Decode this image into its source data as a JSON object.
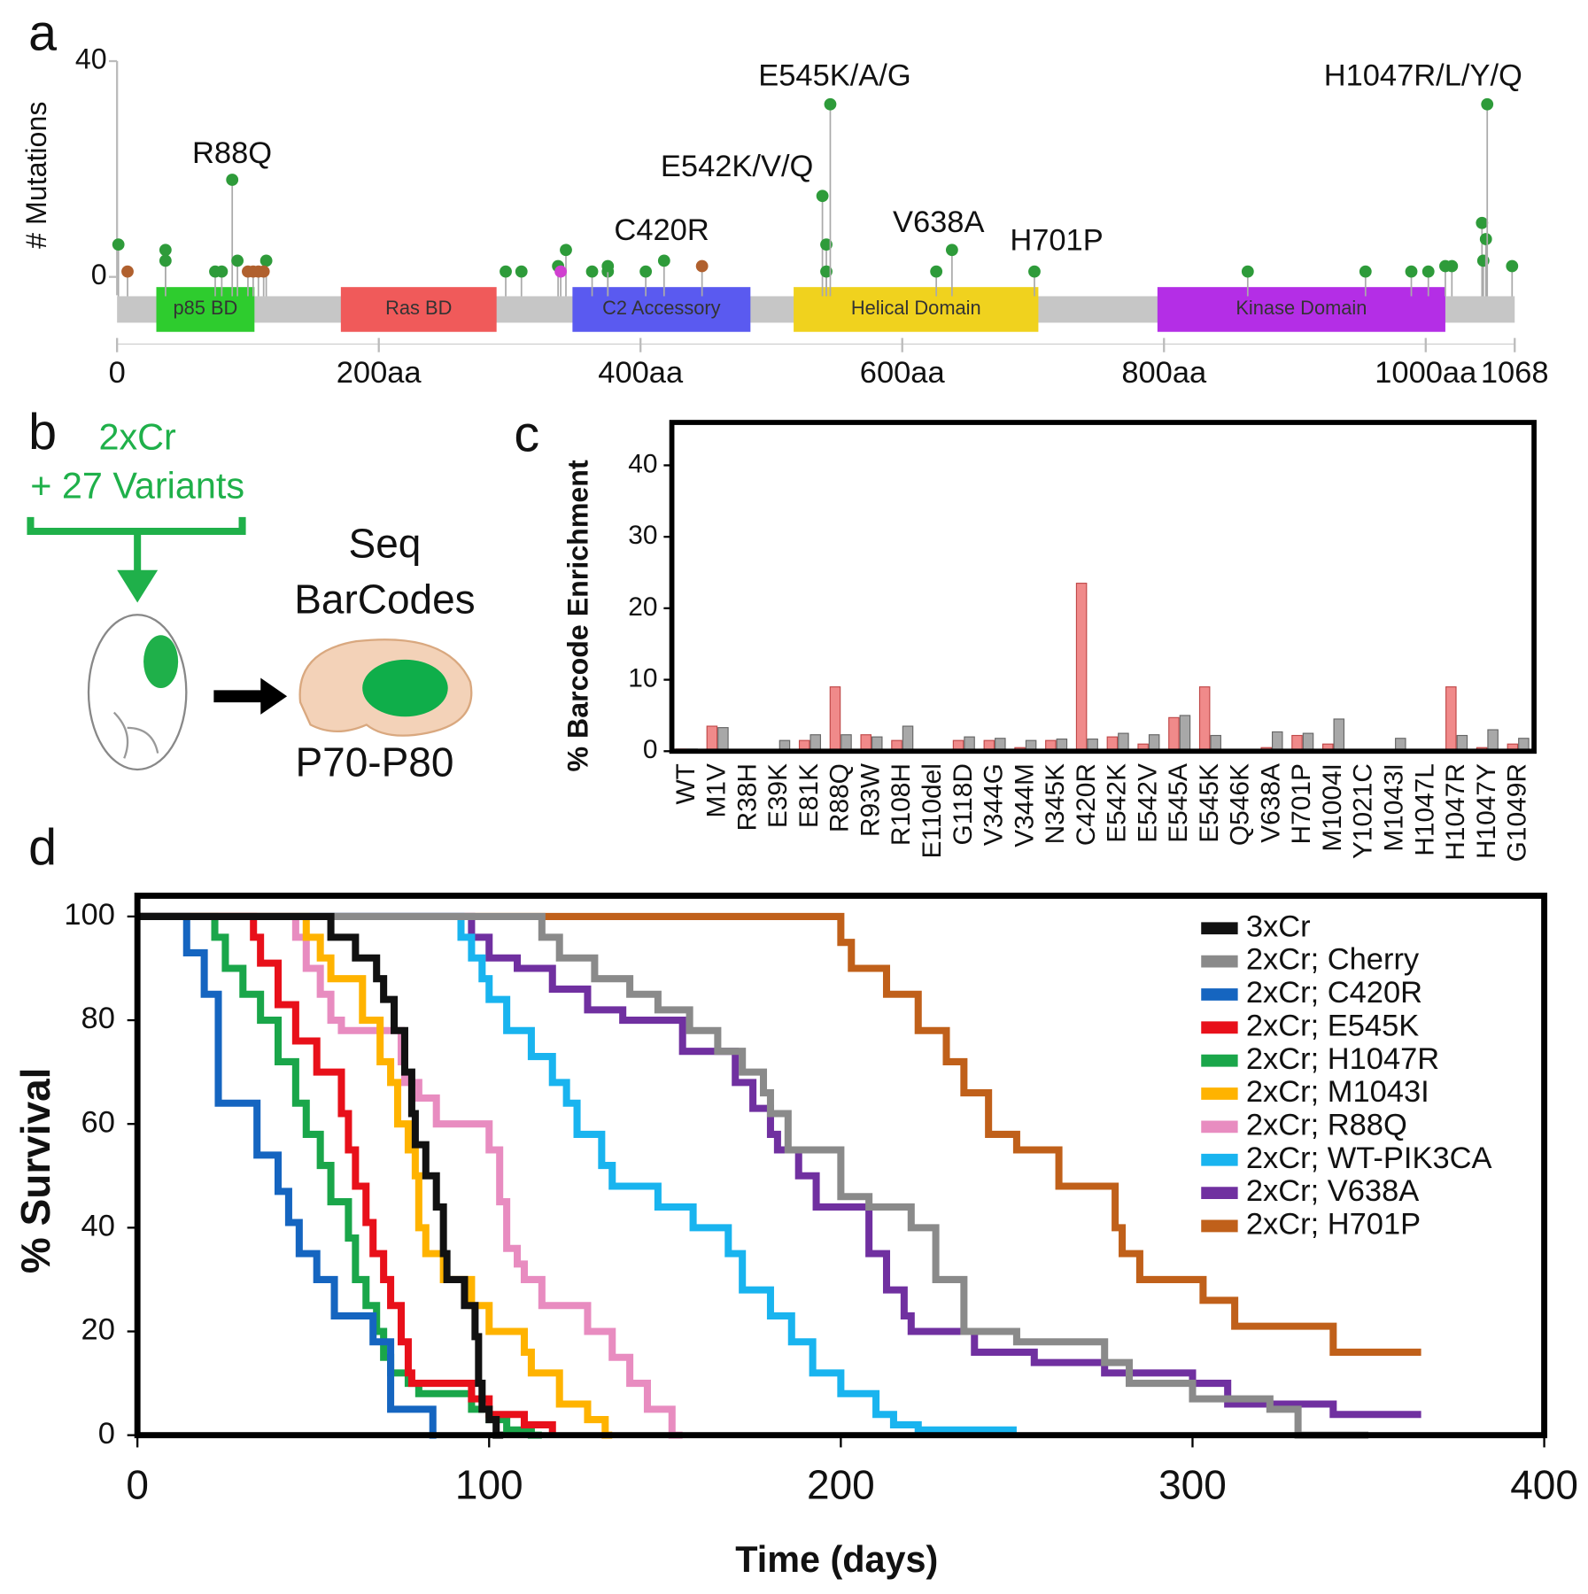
{
  "panel_labels": [
    "a",
    "b",
    "c",
    "d"
  ],
  "diagram": {
    "texts": [
      "2xCr",
      "+ 27 Variants",
      "Seq",
      "BarCodes",
      "P70-P80"
    ]
  },
  "chart_data": [
    {
      "type": "lollipop",
      "ylabel": "# Mutations",
      "xlim": [
        0,
        1068
      ],
      "xticks": [
        0,
        {
          "value": 200,
          "label": "200aa"
        },
        {
          "value": 400,
          "label": "400aa"
        },
        {
          "value": 600,
          "label": "600aa"
        },
        {
          "value": 800,
          "label": "800aa"
        },
        {
          "value": 1000,
          "label": "1000aa"
        },
        1068
      ],
      "ylim": [
        0,
        40
      ],
      "yticks": [
        0,
        40
      ],
      "domains": [
        {
          "name": "p85 BD",
          "start": 30,
          "end": 105,
          "color": "#2ecc2e"
        },
        {
          "name": "Ras BD",
          "start": 171,
          "end": 290,
          "color": "#f05a5a"
        },
        {
          "name": "C2 Accessory",
          "start": 348,
          "end": 484,
          "color": "#5a5af0"
        },
        {
          "name": "Helical Domain",
          "start": 517,
          "end": 704,
          "color": "#f0d21e"
        },
        {
          "name": "Kinase Domain",
          "start": 795,
          "end": 1015,
          "color": "#b42ee6"
        }
      ],
      "series": [
        {
          "color": "#2e9b3a",
          "x": [
            1,
            37,
            37,
            75,
            80,
            88,
            92,
            114,
            297,
            309,
            337,
            343,
            363,
            375,
            375,
            404,
            418,
            539,
            542,
            542,
            545,
            626,
            638,
            701,
            864,
            954,
            989,
            1002,
            1015,
            1020,
            1043,
            1044,
            1046,
            1047,
            1066
          ],
          "values": [
            6,
            5,
            3,
            1,
            1,
            18,
            3,
            3,
            1,
            1,
            2,
            5,
            1,
            1,
            2,
            1,
            3,
            15,
            6,
            1,
            32,
            1,
            5,
            1,
            1,
            1,
            1,
            1,
            2,
            2,
            10,
            3,
            7,
            32,
            2
          ]
        },
        {
          "color": "#b0602e",
          "x": [
            8,
            100,
            104,
            108,
            112,
            447
          ],
          "values": [
            1,
            1,
            1,
            1,
            1,
            2
          ]
        },
        {
          "color": "#d040d0",
          "x": [
            339
          ],
          "values": [
            1
          ]
        }
      ],
      "annotations": [
        "R88Q",
        "E542K/V/Q",
        "C420R",
        "E545K/A/G",
        "V638A",
        "H701P",
        "H1047R/L/Y/Q"
      ]
    },
    {
      "type": "bar",
      "ylabel": "% Barcode Enrichment",
      "categories": [
        "WT",
        "M1V",
        "R38H",
        "E39K",
        "E81K",
        "R88Q",
        "R93W",
        "R108H",
        "E110del",
        "G118D",
        "V344G",
        "V344M",
        "N345K",
        "C420R",
        "E542K",
        "E542V",
        "E545A",
        "E545K",
        "Q546K",
        "V638A",
        "H701P",
        "M1004I",
        "Y1021C",
        "M1043I",
        "H1047L",
        "H1047R",
        "H1047Y",
        "G1049R"
      ],
      "series": [
        {
          "color": "#f08a8a",
          "values": [
            0.3,
            3.5,
            0,
            0.2,
            1.5,
            9,
            2.3,
            1.5,
            0,
            1.5,
            1.5,
            0.5,
            1.5,
            23.5,
            2,
            1,
            4.7,
            9,
            0,
            0.5,
            2.2,
            1,
            0.2,
            0,
            0,
            9,
            0.5,
            1
          ]
        },
        {
          "color": "#a8a8a8",
          "values": [
            0.3,
            3.3,
            0,
            1.5,
            2.3,
            2.3,
            2,
            3.5,
            0,
            2,
            1.8,
            1.5,
            1.7,
            1.7,
            2.5,
            2.3,
            5,
            2.2,
            0,
            2.7,
            2.5,
            4.5,
            0,
            1.8,
            0,
            2.2,
            3,
            1.8
          ]
        }
      ],
      "ylim": [
        0,
        46
      ],
      "yticks": [
        0,
        10,
        20,
        30,
        40
      ]
    },
    {
      "type": "step",
      "xlabel": "Time (days)",
      "ylabel": "% Survival",
      "xlim": [
        0,
        400
      ],
      "xticks": [
        0,
        100,
        200,
        300,
        400
      ],
      "ylim": [
        0,
        104
      ],
      "yticks": [
        0,
        20,
        40,
        60,
        80,
        100
      ],
      "legend": "upper right",
      "series": [
        {
          "name": "3xCr",
          "color": "#111111",
          "x": [
            0,
            55,
            62,
            68,
            70,
            73,
            76,
            78,
            79,
            82,
            85,
            87,
            88,
            93,
            96,
            97,
            98,
            100,
            102,
            104
          ],
          "values": [
            100,
            96,
            92,
            88,
            84,
            78,
            70,
            62,
            56,
            50,
            44,
            35,
            30,
            25,
            19,
            10,
            5,
            3,
            0,
            0
          ]
        },
        {
          "name": "2xCr; Cherry",
          "color": "#8a8a8a",
          "x": [
            0,
            115,
            120,
            130,
            140,
            148,
            157,
            165,
            172,
            178,
            180,
            185,
            200,
            208,
            220,
            227,
            235,
            250,
            275,
            282,
            300,
            322,
            330,
            350
          ],
          "values": [
            100,
            96,
            92,
            88,
            85,
            82,
            78,
            74,
            70,
            66,
            62,
            55,
            46,
            44,
            40,
            30,
            20,
            18,
            14,
            10,
            7,
            5,
            0,
            0
          ]
        },
        {
          "name": "2xCr; C420R",
          "color": "#1565c0",
          "x": [
            0,
            14,
            19,
            23,
            34,
            40,
            43,
            46,
            51,
            56,
            67,
            72,
            84,
            85
          ],
          "values": [
            100,
            93,
            85,
            64,
            54,
            47,
            41,
            35,
            30,
            23,
            18,
            5,
            0,
            0
          ]
        },
        {
          "name": "2xCr; E545K",
          "color": "#e8101a",
          "x": [
            0,
            33,
            35,
            40,
            45,
            51,
            58,
            60,
            62,
            65,
            67,
            70,
            72,
            75,
            77,
            78,
            95,
            100,
            110,
            118
          ],
          "values": [
            100,
            96,
            91,
            83,
            76,
            70,
            62,
            55,
            48,
            41,
            35,
            30,
            25,
            18,
            12,
            10,
            7,
            4,
            2,
            0
          ]
        },
        {
          "name": "2xCr; H1047R",
          "color": "#1aa64a",
          "x": [
            0,
            22,
            25,
            30,
            35,
            40,
            45,
            48,
            52,
            55,
            60,
            62,
            65,
            68,
            70,
            72,
            77,
            80,
            95,
            100,
            105,
            112,
            115
          ],
          "values": [
            100,
            96,
            90,
            85,
            80,
            72,
            64,
            58,
            52,
            45,
            38,
            30,
            25,
            20,
            15,
            12,
            10,
            8,
            5,
            3,
            1,
            0,
            0
          ]
        },
        {
          "name": "2xCr; M1043I",
          "color": "#ffb300",
          "x": [
            0,
            48,
            52,
            55,
            64,
            69,
            72,
            74,
            77,
            79,
            80,
            82,
            87,
            95,
            100,
            110,
            112,
            120,
            128,
            133,
            135
          ],
          "values": [
            100,
            96,
            92,
            88,
            80,
            72,
            68,
            60,
            55,
            50,
            40,
            35,
            30,
            25,
            20,
            16,
            12,
            6,
            3,
            0,
            0
          ]
        },
        {
          "name": "2xCr; R88Q",
          "color": "#e88cc0",
          "x": [
            0,
            45,
            48,
            52,
            55,
            58,
            75,
            76,
            80,
            85,
            100,
            103,
            105,
            108,
            110,
            115,
            128,
            135,
            140,
            145,
            152,
            155
          ],
          "values": [
            100,
            96,
            90,
            85,
            80,
            78,
            72,
            68,
            65,
            60,
            55,
            45,
            36,
            33,
            30,
            25,
            20,
            15,
            10,
            5,
            0,
            0
          ]
        },
        {
          "name": "2xCr; WT-PIK3CA",
          "color": "#19b4ef",
          "x": [
            0,
            92,
            95,
            98,
            100,
            105,
            112,
            118,
            122,
            125,
            132,
            135,
            148,
            158,
            168,
            172,
            180,
            186,
            192,
            200,
            210,
            215,
            222,
            250
          ],
          "values": [
            100,
            96,
            92,
            88,
            84,
            78,
            73,
            68,
            64,
            58,
            52,
            48,
            44,
            40,
            35,
            28,
            23,
            18,
            12,
            8,
            4,
            2,
            1,
            1
          ]
        },
        {
          "name": "2xCr; V638A",
          "color": "#7030a0",
          "x": [
            0,
            95,
            100,
            108,
            118,
            128,
            138,
            155,
            170,
            175,
            180,
            182,
            188,
            193,
            208,
            213,
            218,
            220,
            238,
            255,
            275,
            300,
            310,
            340,
            365
          ],
          "values": [
            100,
            96,
            92,
            90,
            86,
            82,
            80,
            74,
            68,
            63,
            58,
            55,
            50,
            44,
            35,
            28,
            23,
            20,
            16,
            14,
            12,
            10,
            6,
            4,
            4
          ]
        },
        {
          "name": "2xCr; H701P",
          "color": "#c0601a",
          "x": [
            0,
            200,
            203,
            213,
            222,
            230,
            235,
            242,
            250,
            262,
            278,
            280,
            285,
            303,
            312,
            340,
            365
          ],
          "values": [
            100,
            95,
            90,
            85,
            78,
            72,
            66,
            58,
            55,
            48,
            40,
            35,
            30,
            26,
            21,
            16,
            16
          ]
        }
      ]
    }
  ]
}
